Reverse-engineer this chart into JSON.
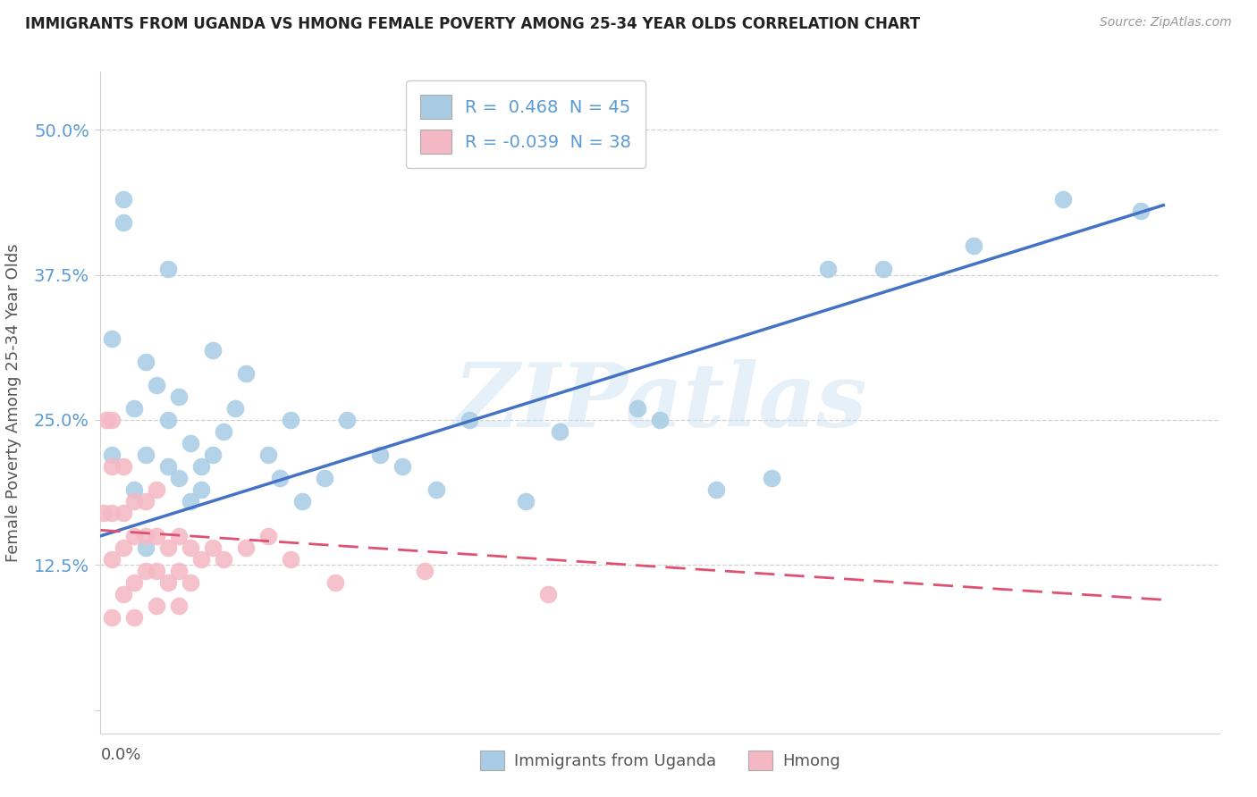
{
  "title": "IMMIGRANTS FROM UGANDA VS HMONG FEMALE POVERTY AMONG 25-34 YEAR OLDS CORRELATION CHART",
  "source": "Source: ZipAtlas.com",
  "ylabel": "Female Poverty Among 25-34 Year Olds",
  "watermark": "ZIPatlas",
  "legend1_label": "R =  0.468  N = 45",
  "legend2_label": "R = -0.039  N = 38",
  "legend_title1": "Immigrants from Uganda",
  "legend_title2": "Hmong",
  "blue_color": "#a8cce4",
  "pink_color": "#f4b8c4",
  "blue_line_color": "#4472c4",
  "pink_line_color": "#e05070",
  "background_color": "#ffffff",
  "grid_color": "#d0d0d0",
  "title_color": "#222222",
  "label_color": "#555555",
  "tick_color": "#5b9bd5",
  "source_color": "#999999",
  "xlim": [
    0.0,
    0.1
  ],
  "ylim": [
    -0.02,
    0.55
  ],
  "yticks": [
    0.0,
    0.125,
    0.25,
    0.375,
    0.5
  ],
  "ytick_labels": [
    "",
    "12.5%",
    "25.0%",
    "37.5%",
    "50.0%"
  ],
  "blue_line_x0": 0.0,
  "blue_line_y0": 0.15,
  "blue_line_x1": 0.095,
  "blue_line_y1": 0.435,
  "pink_line_x0": 0.0,
  "pink_line_y0": 0.155,
  "pink_line_x1": 0.095,
  "pink_line_y1": 0.095,
  "uganda_x": [
    0.001,
    0.001,
    0.002,
    0.002,
    0.003,
    0.003,
    0.004,
    0.004,
    0.004,
    0.005,
    0.006,
    0.006,
    0.006,
    0.007,
    0.007,
    0.008,
    0.008,
    0.009,
    0.009,
    0.01,
    0.01,
    0.011,
    0.012,
    0.013,
    0.015,
    0.016,
    0.017,
    0.018,
    0.02,
    0.022,
    0.025,
    0.027,
    0.03,
    0.033,
    0.038,
    0.041,
    0.048,
    0.05,
    0.055,
    0.06,
    0.065,
    0.07,
    0.078,
    0.086,
    0.093
  ],
  "uganda_y": [
    0.32,
    0.22,
    0.42,
    0.44,
    0.19,
    0.26,
    0.14,
    0.22,
    0.3,
    0.28,
    0.21,
    0.25,
    0.38,
    0.2,
    0.27,
    0.18,
    0.23,
    0.19,
    0.21,
    0.22,
    0.31,
    0.24,
    0.26,
    0.29,
    0.22,
    0.2,
    0.25,
    0.18,
    0.2,
    0.25,
    0.22,
    0.21,
    0.19,
    0.25,
    0.18,
    0.24,
    0.26,
    0.25,
    0.19,
    0.2,
    0.38,
    0.38,
    0.4,
    0.44,
    0.43
  ],
  "hmong_x": [
    0.0003,
    0.0005,
    0.001,
    0.001,
    0.001,
    0.001,
    0.001,
    0.002,
    0.002,
    0.002,
    0.002,
    0.003,
    0.003,
    0.003,
    0.003,
    0.004,
    0.004,
    0.004,
    0.005,
    0.005,
    0.005,
    0.005,
    0.006,
    0.006,
    0.007,
    0.007,
    0.007,
    0.008,
    0.008,
    0.009,
    0.01,
    0.011,
    0.013,
    0.015,
    0.017,
    0.021,
    0.029,
    0.04
  ],
  "hmong_y": [
    0.17,
    0.25,
    0.08,
    0.13,
    0.17,
    0.21,
    0.25,
    0.1,
    0.14,
    0.17,
    0.21,
    0.08,
    0.11,
    0.15,
    0.18,
    0.12,
    0.15,
    0.18,
    0.09,
    0.12,
    0.15,
    0.19,
    0.11,
    0.14,
    0.09,
    0.12,
    0.15,
    0.11,
    0.14,
    0.13,
    0.14,
    0.13,
    0.14,
    0.15,
    0.13,
    0.11,
    0.12,
    0.1
  ]
}
